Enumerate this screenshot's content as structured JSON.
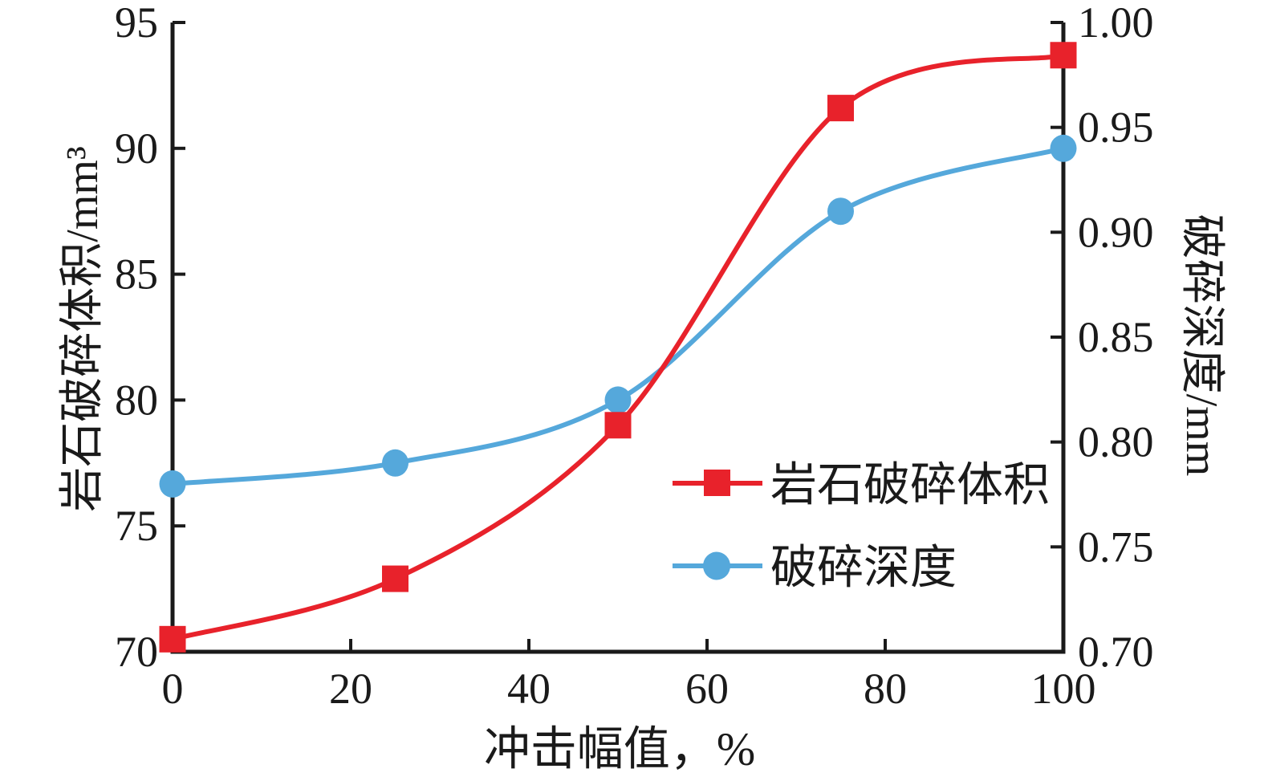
{
  "figure": {
    "background": "#ffffff",
    "axis_color": "#1a1a1a",
    "text_color": "#1a1a1a"
  },
  "chart_data": {
    "type": "line",
    "x": [
      0,
      25,
      50,
      75,
      100
    ],
    "series": [
      {
        "key": "rock-volume",
        "name": "岩石破碎体积",
        "axis": "left",
        "color": "#e8222b",
        "marker": "square",
        "values": [
          70.5,
          72.9,
          79.0,
          91.6,
          93.7
        ]
      },
      {
        "key": "crush-depth",
        "name": "破碎深度",
        "axis": "right",
        "color": "#55a8db",
        "marker": "circle",
        "values": [
          0.78,
          0.79,
          0.82,
          0.91,
          0.94
        ]
      }
    ],
    "xlabel": "冲击幅值，%",
    "ylabel_left": "岩石破碎体积/mm³",
    "ylabel_right": "破碎深度/mm",
    "xlim": [
      0,
      100
    ],
    "ylim_left": [
      70,
      95
    ],
    "ylim_right": [
      0.7,
      1.0
    ],
    "xticks": [
      "0",
      "20",
      "40",
      "60",
      "80",
      "100"
    ],
    "yticks_left": [
      "70",
      "75",
      "80",
      "85",
      "90",
      "95"
    ],
    "yticks_right": [
      "0.70",
      "0.75",
      "0.80",
      "0.85",
      "0.90",
      "0.95",
      "1.00"
    ],
    "grid": false,
    "legend_position": "center-right"
  },
  "legend": {
    "items": [
      {
        "label": "岩石破碎体积",
        "marker": "square"
      },
      {
        "label": "破碎深度",
        "marker": "circle"
      }
    ]
  }
}
